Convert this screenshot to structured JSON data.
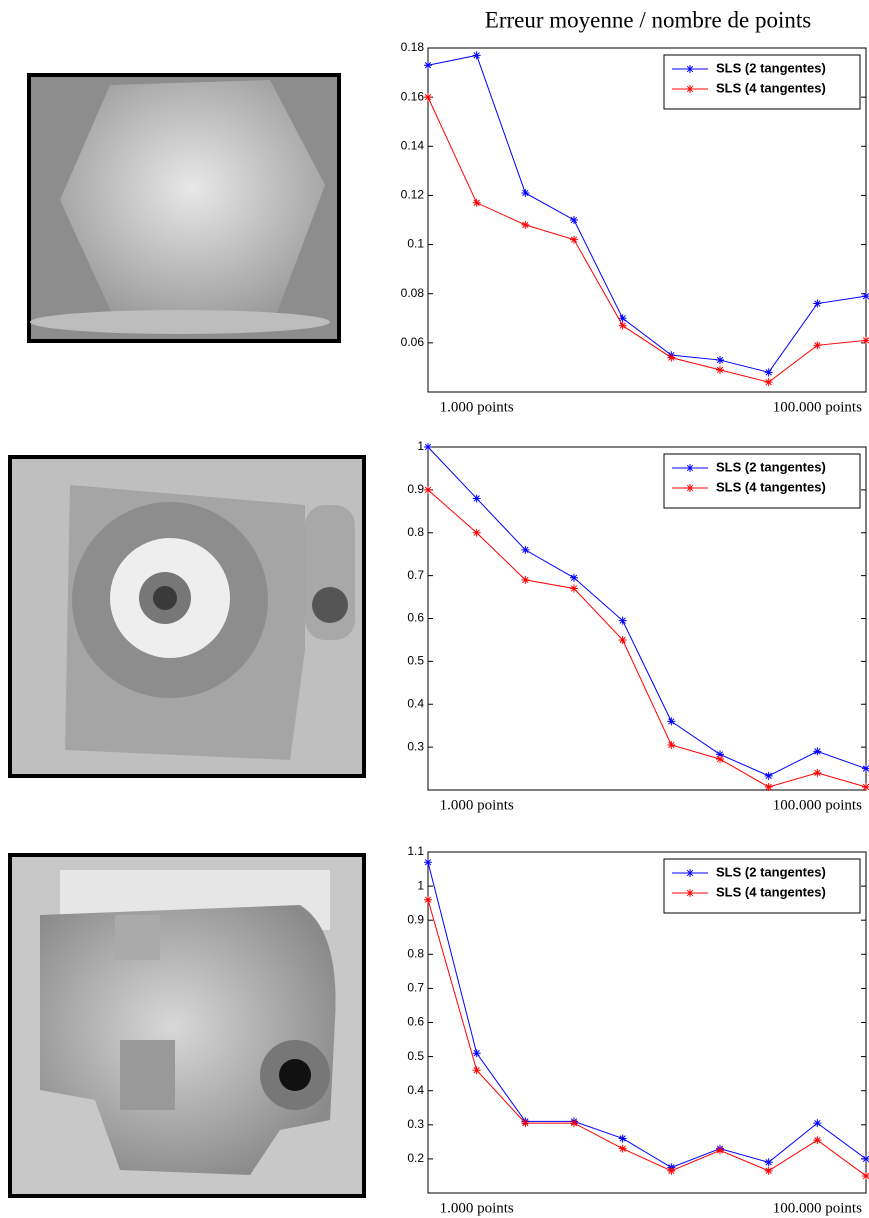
{
  "title": "Erreur moyenne / nombre de points",
  "chart_data": [
    {
      "type": "line",
      "categories": [
        null,
        "1.000 points",
        null,
        null,
        null,
        null,
        null,
        null,
        "100.000 points",
        null
      ],
      "ylim": [
        0.04,
        0.18
      ],
      "yticks": [
        0.06,
        0.08,
        0.1,
        0.12,
        0.14,
        0.16,
        0.18
      ],
      "legend": "upper right",
      "marker": "*",
      "series": [
        {
          "name": "SLS (2 tangentes)",
          "color": "#0000ff",
          "values": [
            0.173,
            0.177,
            0.121,
            0.11,
            0.07,
            0.055,
            0.053,
            0.048,
            0.076,
            0.079
          ]
        },
        {
          "name": "SLS (4 tangentes)",
          "color": "#ff0000",
          "values": [
            0.16,
            0.117,
            0.108,
            0.102,
            0.067,
            0.054,
            0.049,
            0.044,
            0.059,
            0.061
          ]
        }
      ]
    },
    {
      "type": "line",
      "categories": [
        null,
        "1.000 points",
        null,
        null,
        null,
        null,
        null,
        null,
        "100.000 points",
        null
      ],
      "ylim": [
        0.2,
        1
      ],
      "yticks": [
        0.3,
        0.4,
        0.5,
        0.6,
        0.7,
        0.8,
        0.9,
        1
      ],
      "legend": "upper right",
      "marker": "*",
      "series": [
        {
          "name": "SLS (2 tangentes)",
          "color": "#0000ff",
          "values": [
            1.0,
            0.88,
            0.76,
            0.695,
            0.595,
            0.36,
            0.283,
            0.233,
            0.29,
            0.25
          ]
        },
        {
          "name": "SLS (4 tangentes)",
          "color": "#ff0000",
          "values": [
            0.9,
            0.8,
            0.69,
            0.67,
            0.55,
            0.305,
            0.272,
            0.207,
            0.24,
            0.207
          ]
        }
      ]
    },
    {
      "type": "line",
      "categories": [
        null,
        "1.000 points",
        null,
        null,
        null,
        null,
        null,
        null,
        "100.000 points",
        null
      ],
      "ylim": [
        0.1,
        1.1
      ],
      "yticks": [
        0.2,
        0.3,
        0.4,
        0.5,
        0.6,
        0.7,
        0.8,
        0.9,
        1,
        1.1
      ],
      "legend": "upper right",
      "marker": "*",
      "series": [
        {
          "name": "SLS (2 tangentes)",
          "color": "#0000ff",
          "values": [
            1.07,
            0.51,
            0.31,
            0.31,
            0.26,
            0.175,
            0.23,
            0.19,
            0.305,
            0.2
          ]
        },
        {
          "name": "SLS (4 tangentes)",
          "color": "#ff0000",
          "values": [
            0.96,
            0.46,
            0.305,
            0.305,
            0.23,
            0.165,
            0.225,
            0.165,
            0.255,
            0.15
          ]
        }
      ]
    }
  ]
}
